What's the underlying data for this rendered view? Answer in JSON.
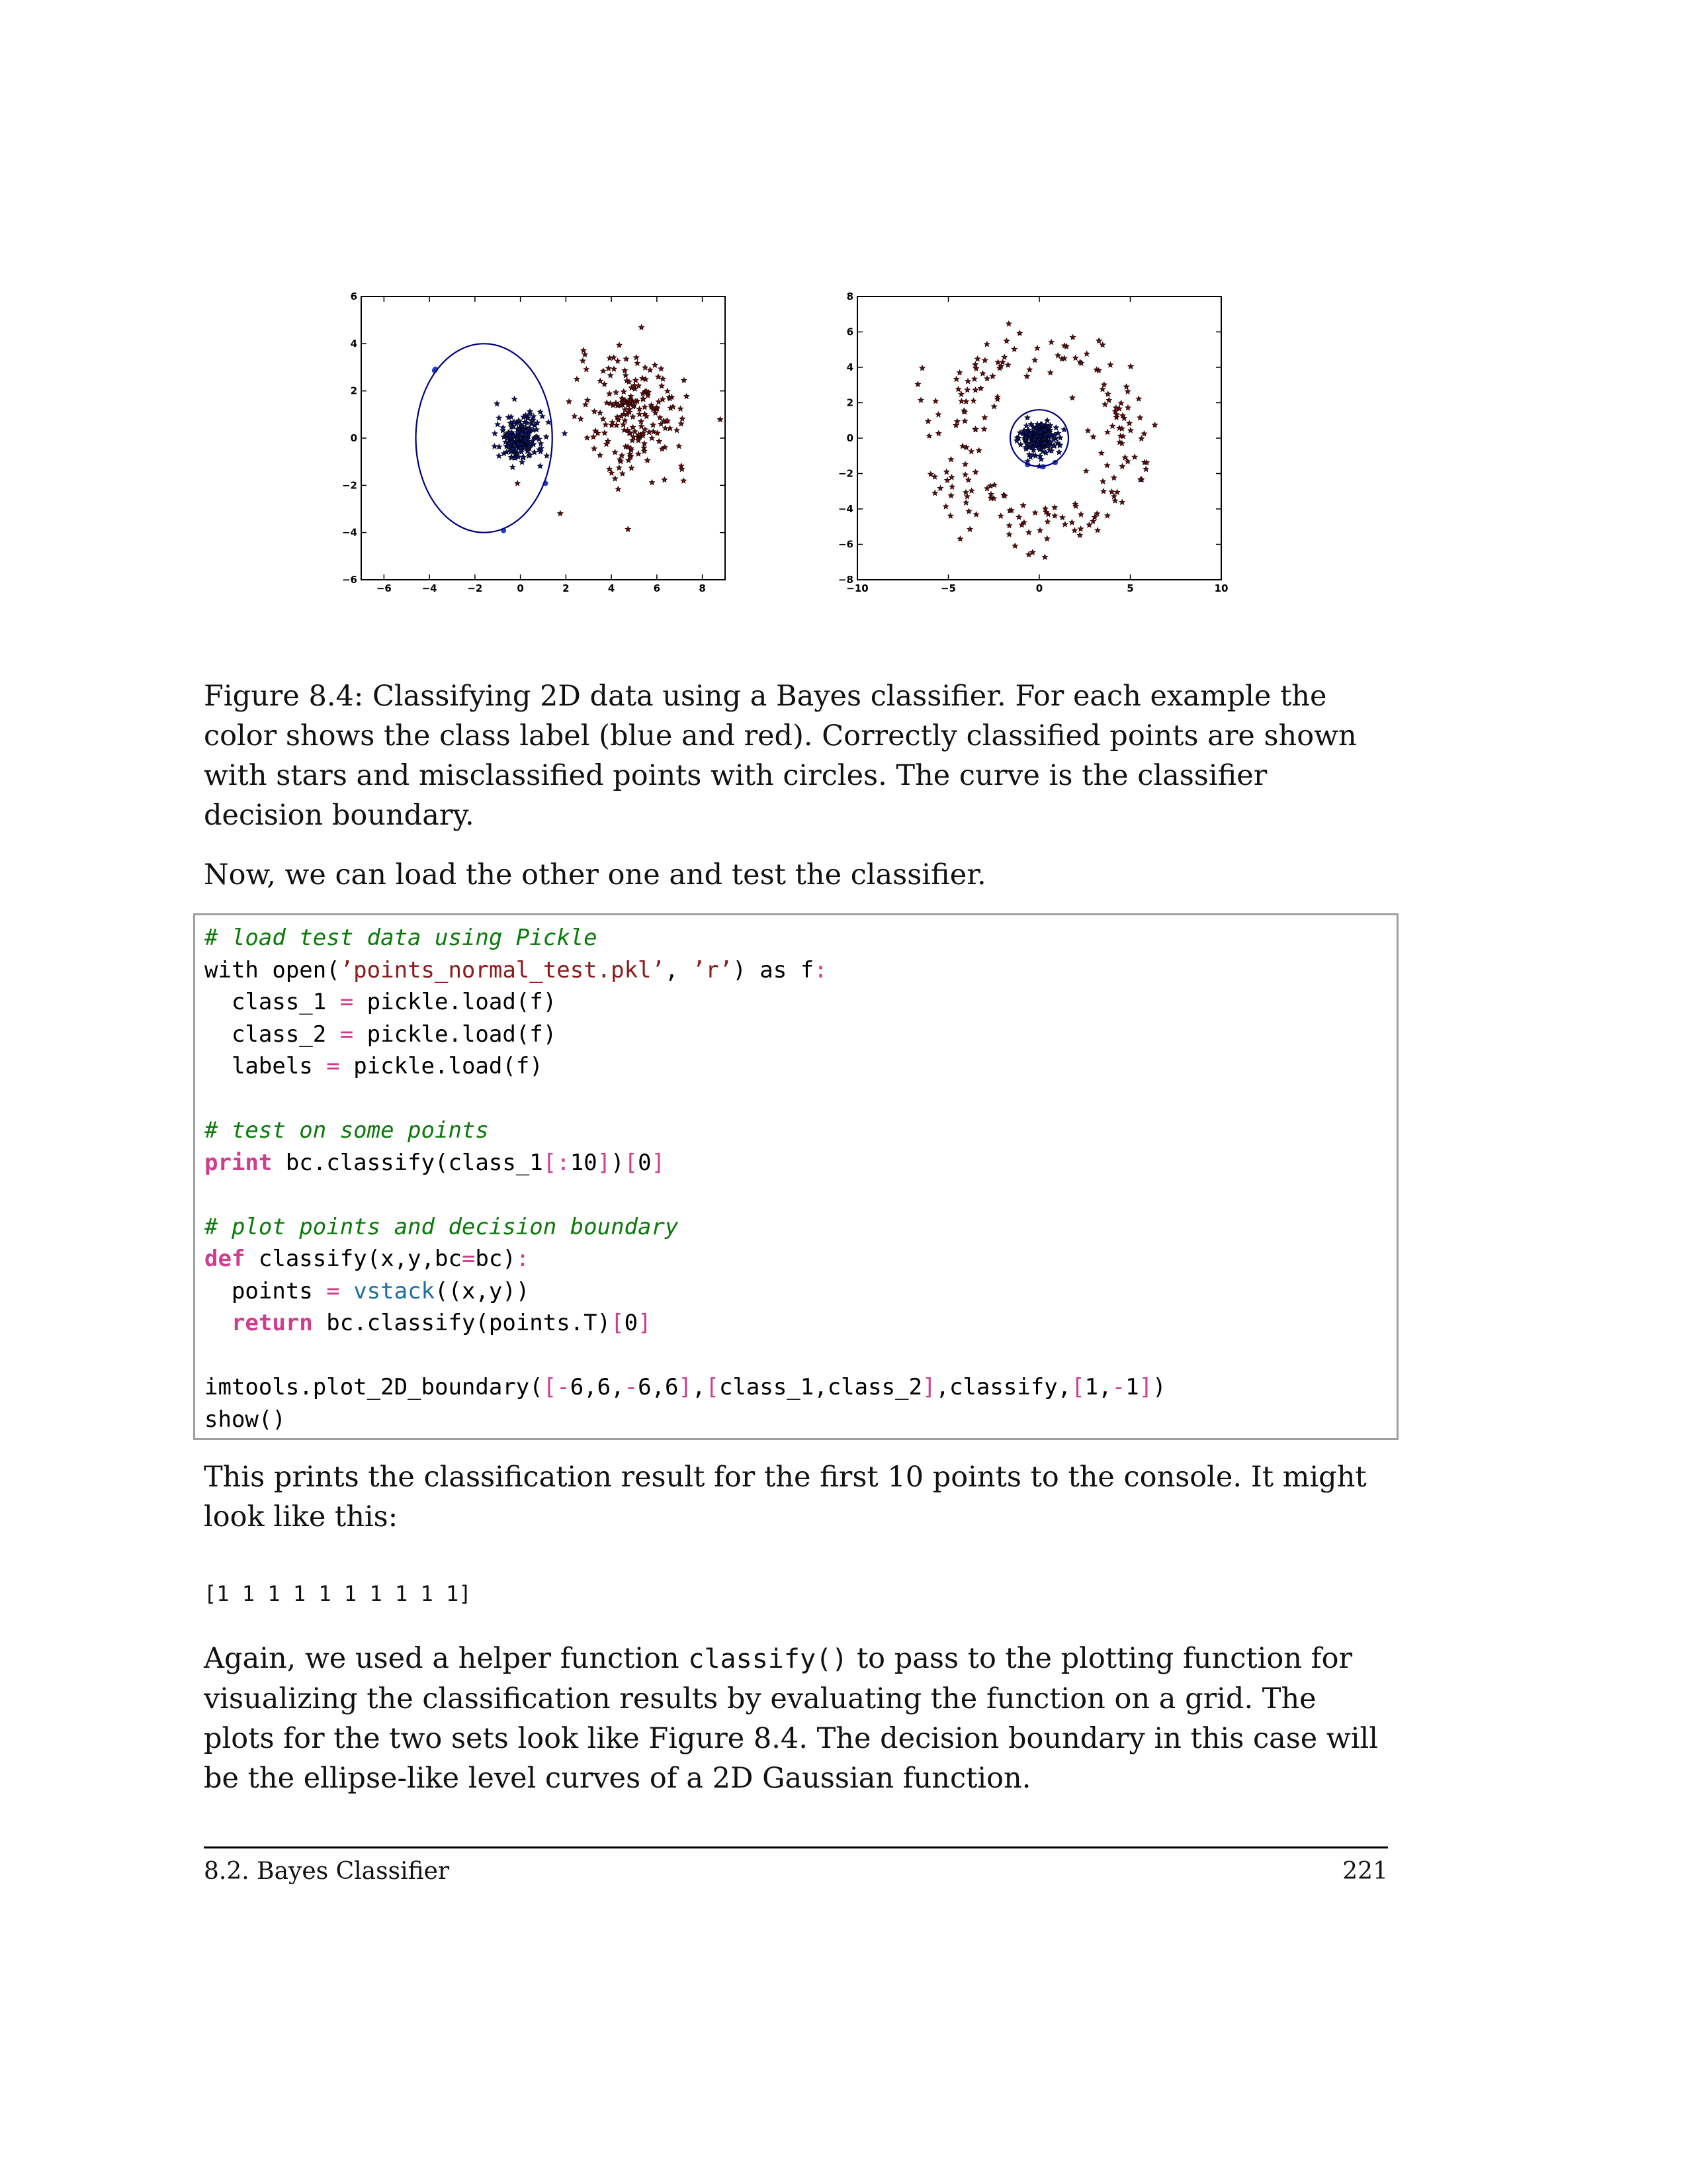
{
  "figure": {
    "left_plot": {
      "x_ticks": [
        "−6",
        "−4",
        "−2",
        "0",
        "2",
        "4",
        "6",
        "8"
      ],
      "y_ticks": [
        "6",
        "4",
        "2",
        "0",
        "−2",
        "−4",
        "−6"
      ]
    },
    "right_plot": {
      "x_ticks": [
        "−10",
        "−5",
        "0",
        "5",
        "10"
      ],
      "y_ticks": [
        "8",
        "6",
        "4",
        "2",
        "0",
        "−2",
        "−4",
        "−6",
        "−8"
      ]
    },
    "caption": "Figure 8.4: Classifying 2D data using a Bayes classifier. For each example the color shows the class label (blue and red). Correctly classified points are shown with stars and misclassified points with circles. The curve is the classifier decision boundary."
  },
  "chart_data": [
    {
      "type": "scatter",
      "xlim": [
        -7,
        9
      ],
      "ylim": [
        -6,
        6
      ],
      "series": [
        {
          "color": "#0d1570",
          "marker": "star",
          "cluster_center": [
            0,
            0
          ],
          "spread": 0.5
        },
        {
          "color": "#6e0a0a",
          "marker": "star",
          "cluster_center": [
            5,
            1
          ],
          "spread": 1.2
        }
      ],
      "decision_boundary": {
        "shape": "ellipse",
        "center": [
          -1.6,
          0
        ],
        "rx": 3.0,
        "ry": 4.0,
        "color": "#000080"
      }
    },
    {
      "type": "scatter",
      "xlim": [
        -10,
        10
      ],
      "ylim": [
        -8,
        8
      ],
      "series": [
        {
          "color": "#0d1570",
          "marker": "star",
          "cluster_center": [
            0,
            0
          ],
          "spread": 0.5
        },
        {
          "color": "#6e0a0a",
          "marker": "star",
          "ring_center": [
            0,
            0
          ],
          "ring_radius": 5
        }
      ],
      "decision_boundary": {
        "shape": "circle",
        "center": [
          0,
          0
        ],
        "radius": 1.6,
        "color": "#000080"
      }
    }
  ],
  "intro": "Now, we can load the other one and test the classifier.",
  "code": [
    [
      {
        "t": "# load test data using Pickle",
        "c": "cm"
      }
    ],
    [
      {
        "t": "with open("
      },
      {
        "t": "’points_normal_test.pkl’",
        "c": "str"
      },
      {
        "t": ", "
      },
      {
        "t": "’r’",
        "c": "str"
      },
      {
        "t": ") as f"
      },
      {
        "t": ":",
        "c": "op"
      }
    ],
    [
      {
        "t": "  class_1 "
      },
      {
        "t": "=",
        "c": "op"
      },
      {
        "t": " pickle.load(f)"
      }
    ],
    [
      {
        "t": "  class_2 "
      },
      {
        "t": "=",
        "c": "op"
      },
      {
        "t": " pickle.load(f)"
      }
    ],
    [
      {
        "t": "  labels "
      },
      {
        "t": "=",
        "c": "op"
      },
      {
        "t": " pickle.load(f)"
      }
    ],
    [],
    [
      {
        "t": "# test on some points",
        "c": "cm"
      }
    ],
    [
      {
        "t": "print",
        "c": "kw"
      },
      {
        "t": " bc.classify(class_1"
      },
      {
        "t": "[:",
        "c": "op"
      },
      {
        "t": "10"
      },
      {
        "t": "]",
        "c": "op"
      },
      {
        "t": ")"
      },
      {
        "t": "[",
        "c": "op"
      },
      {
        "t": "0"
      },
      {
        "t": "]",
        "c": "op"
      }
    ],
    [],
    [
      {
        "t": "# plot points and decision boundary",
        "c": "cm"
      }
    ],
    [
      {
        "t": "def",
        "c": "kw"
      },
      {
        "t": " classify(x,y,bc"
      },
      {
        "t": "=",
        "c": "op"
      },
      {
        "t": "bc)"
      },
      {
        "t": ":",
        "c": "op"
      }
    ],
    [
      {
        "t": "  points "
      },
      {
        "t": "=",
        "c": "op"
      },
      {
        "t": " "
      },
      {
        "t": "vstack",
        "c": "bi"
      },
      {
        "t": "((x,y))"
      }
    ],
    [
      {
        "t": "  "
      },
      {
        "t": "return",
        "c": "kw"
      },
      {
        "t": " bc.classify(points.T)"
      },
      {
        "t": "[",
        "c": "op"
      },
      {
        "t": "0"
      },
      {
        "t": "]",
        "c": "op"
      }
    ],
    [],
    [
      {
        "t": "imtools.plot_2D_boundary("
      },
      {
        "t": "[-",
        "c": "op"
      },
      {
        "t": "6,6,"
      },
      {
        "t": "-",
        "c": "op"
      },
      {
        "t": "6,6"
      },
      {
        "t": "]",
        "c": "op"
      },
      {
        "t": ","
      },
      {
        "t": "[",
        "c": "op"
      },
      {
        "t": "class_1,class_2"
      },
      {
        "t": "]",
        "c": "op"
      },
      {
        "t": ",classify,"
      },
      {
        "t": "[",
        "c": "op"
      },
      {
        "t": "1,"
      },
      {
        "t": "-",
        "c": "op"
      },
      {
        "t": "1"
      },
      {
        "t": "]",
        "c": "op"
      },
      {
        "t": ")"
      }
    ],
    [
      {
        "t": "show()"
      }
    ]
  ],
  "result_text": "This prints the classification result for the first 10 points to the console. It might look like this:",
  "output": "[1 1 1 1 1 1 1 1 1 1]",
  "closing": {
    "before": "Again, we used a helper function ",
    "code": "classify()",
    "after": " to pass to the plotting function for visualizing the classification results by evaluating the function on a grid. The plots for the two sets look like Figure 8.4. The decision boundary in this case will be the ellipse-like level curves of a 2D Gaussian function."
  },
  "footer": {
    "section": "8.2. Bayes Classifier",
    "page": "221"
  }
}
